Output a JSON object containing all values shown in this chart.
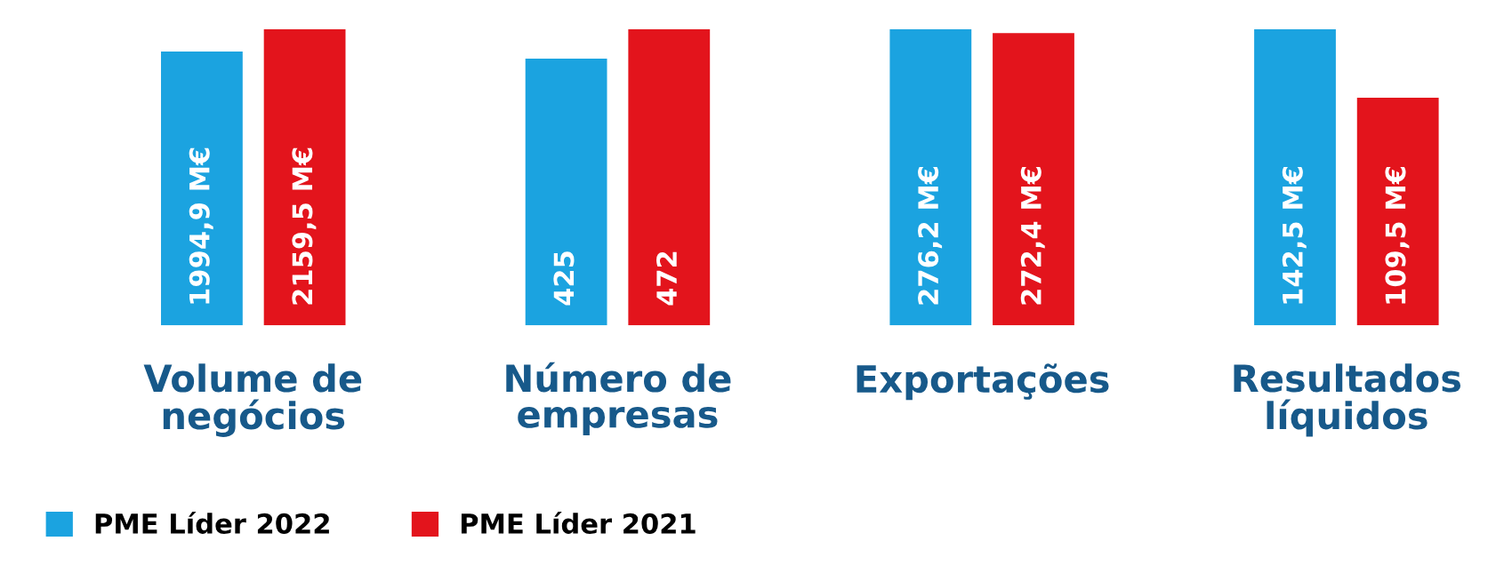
{
  "chart_data": [
    {
      "type": "bar",
      "xlabel": "Volume de\nnegócios",
      "categories": [
        null
      ],
      "legend": "bottom",
      "series": [
        {
          "name": "PME Líder 2022",
          "color": "#1ba3e0",
          "values": [
            1994.9
          ],
          "value_labels": [
            "1994,9 M€"
          ]
        },
        {
          "name": "PME Líder 2021",
          "color": "#e3141c",
          "values": [
            2159.5
          ],
          "value_labels": [
            "2159,5 M€"
          ]
        }
      ]
    },
    {
      "type": "bar",
      "xlabel": "Número de\nempresas",
      "categories": [
        null
      ],
      "series": [
        {
          "color": "#1ba3e0",
          "values": [
            425
          ],
          "value_labels": [
            "425"
          ]
        },
        {
          "color": "#e3141c",
          "values": [
            472
          ],
          "value_labels": [
            "472"
          ]
        }
      ]
    },
    {
      "type": "bar",
      "xlabel": "Exportações\n",
      "categories": [
        null
      ],
      "series": [
        {
          "color": "#1ba3e0",
          "values": [
            276.2
          ],
          "value_labels": [
            "276,2 M€"
          ]
        },
        {
          "color": "#e3141c",
          "values": [
            272.4
          ],
          "value_labels": [
            "272,4 M€"
          ]
        }
      ]
    },
    {
      "type": "bar",
      "xlabel": "Resultados\nlíquidos",
      "categories": [
        null
      ],
      "series": [
        {
          "color": "#1ba3e0",
          "values": [
            142.5
          ],
          "value_labels": [
            "142,5 M€"
          ]
        },
        {
          "color": "#e3141c",
          "values": [
            109.5
          ],
          "value_labels": [
            "109,5 M€"
          ]
        }
      ]
    }
  ]
}
